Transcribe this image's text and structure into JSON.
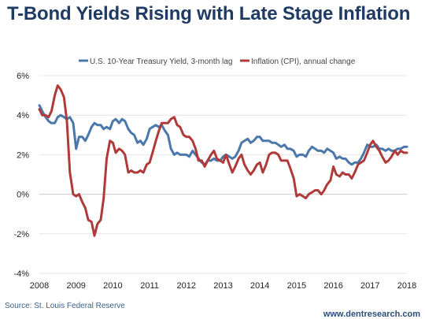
{
  "chart_data": {
    "type": "line",
    "title": "T-Bond Yields Rising with Late Stage Inflation",
    "source": "Source: St. Louis Federal Reserve",
    "website": "www.dentresearch.com",
    "xlim": [
      2008,
      2018
    ],
    "ylim": [
      -4,
      6
    ],
    "x_ticks": [
      "2008",
      "2009",
      "2010",
      "2011",
      "2012",
      "2013",
      "2014",
      "2015",
      "2016",
      "2017",
      "2018"
    ],
    "y_ticks": [
      "6%",
      "4%",
      "2%",
      "0%",
      "-2%",
      "-4%"
    ],
    "legend_position": "top",
    "grid": "horizontal",
    "series": [
      {
        "name": "U.S. 10-Year Treasury Yield, 3-month lag",
        "color": "#4a78ab",
        "points": [
          [
            2008.0,
            4.5
          ],
          [
            2008.08,
            4.2
          ],
          [
            2008.17,
            3.9
          ],
          [
            2008.25,
            3.7
          ],
          [
            2008.33,
            3.6
          ],
          [
            2008.42,
            3.6
          ],
          [
            2008.5,
            3.9
          ],
          [
            2008.58,
            4.0
          ],
          [
            2008.67,
            3.9
          ],
          [
            2008.75,
            3.8
          ],
          [
            2008.83,
            3.9
          ],
          [
            2008.92,
            3.6
          ],
          [
            2009.0,
            2.3
          ],
          [
            2009.08,
            2.9
          ],
          [
            2009.17,
            2.9
          ],
          [
            2009.25,
            2.7
          ],
          [
            2009.33,
            3.0
          ],
          [
            2009.42,
            3.4
          ],
          [
            2009.5,
            3.6
          ],
          [
            2009.58,
            3.5
          ],
          [
            2009.67,
            3.5
          ],
          [
            2009.75,
            3.3
          ],
          [
            2009.83,
            3.4
          ],
          [
            2009.92,
            3.3
          ],
          [
            2010.0,
            3.7
          ],
          [
            2010.08,
            3.8
          ],
          [
            2010.17,
            3.6
          ],
          [
            2010.25,
            3.8
          ],
          [
            2010.33,
            3.7
          ],
          [
            2010.42,
            3.3
          ],
          [
            2010.5,
            3.1
          ],
          [
            2010.58,
            3.0
          ],
          [
            2010.67,
            2.6
          ],
          [
            2010.75,
            2.7
          ],
          [
            2010.83,
            2.5
          ],
          [
            2010.92,
            2.8
          ],
          [
            2011.0,
            3.3
          ],
          [
            2011.08,
            3.4
          ],
          [
            2011.17,
            3.5
          ],
          [
            2011.25,
            3.4
          ],
          [
            2011.33,
            3.5
          ],
          [
            2011.42,
            3.2
          ],
          [
            2011.5,
            3.0
          ],
          [
            2011.58,
            2.3
          ],
          [
            2011.67,
            2.0
          ],
          [
            2011.75,
            2.1
          ],
          [
            2011.83,
            2.0
          ],
          [
            2011.92,
            2.0
          ],
          [
            2012.0,
            2.0
          ],
          [
            2012.08,
            1.9
          ],
          [
            2012.17,
            2.2
          ],
          [
            2012.25,
            2.0
          ],
          [
            2012.33,
            1.8
          ],
          [
            2012.42,
            1.6
          ],
          [
            2012.5,
            1.5
          ],
          [
            2012.58,
            1.7
          ],
          [
            2012.67,
            1.7
          ],
          [
            2012.75,
            1.8
          ],
          [
            2012.83,
            1.7
          ],
          [
            2012.92,
            1.7
          ],
          [
            2013.0,
            1.9
          ],
          [
            2013.08,
            2.0
          ],
          [
            2013.17,
            1.9
          ],
          [
            2013.25,
            1.8
          ],
          [
            2013.33,
            1.9
          ],
          [
            2013.42,
            2.2
          ],
          [
            2013.5,
            2.6
          ],
          [
            2013.58,
            2.7
          ],
          [
            2013.67,
            2.8
          ],
          [
            2013.75,
            2.6
          ],
          [
            2013.83,
            2.7
          ],
          [
            2013.92,
            2.9
          ],
          [
            2014.0,
            2.9
          ],
          [
            2014.08,
            2.7
          ],
          [
            2014.17,
            2.7
          ],
          [
            2014.25,
            2.7
          ],
          [
            2014.33,
            2.6
          ],
          [
            2014.42,
            2.6
          ],
          [
            2014.5,
            2.5
          ],
          [
            2014.58,
            2.4
          ],
          [
            2014.67,
            2.5
          ],
          [
            2014.75,
            2.3
          ],
          [
            2014.83,
            2.3
          ],
          [
            2014.92,
            2.2
          ],
          [
            2015.0,
            1.9
          ],
          [
            2015.08,
            2.0
          ],
          [
            2015.17,
            2.0
          ],
          [
            2015.25,
            1.9
          ],
          [
            2015.33,
            2.2
          ],
          [
            2015.42,
            2.4
          ],
          [
            2015.5,
            2.3
          ],
          [
            2015.58,
            2.2
          ],
          [
            2015.67,
            2.2
          ],
          [
            2015.75,
            2.1
          ],
          [
            2015.83,
            2.3
          ],
          [
            2015.92,
            2.2
          ],
          [
            2016.0,
            2.1
          ],
          [
            2016.08,
            1.8
          ],
          [
            2016.17,
            1.9
          ],
          [
            2016.25,
            1.8
          ],
          [
            2016.33,
            1.8
          ],
          [
            2016.42,
            1.6
          ],
          [
            2016.5,
            1.5
          ],
          [
            2016.58,
            1.6
          ],
          [
            2016.67,
            1.6
          ],
          [
            2016.75,
            1.8
          ],
          [
            2016.83,
            2.1
          ],
          [
            2016.92,
            2.5
          ],
          [
            2017.0,
            2.4
          ],
          [
            2017.08,
            2.4
          ],
          [
            2017.17,
            2.5
          ],
          [
            2017.25,
            2.3
          ],
          [
            2017.33,
            2.3
          ],
          [
            2017.42,
            2.2
          ],
          [
            2017.5,
            2.3
          ],
          [
            2017.58,
            2.2
          ],
          [
            2017.67,
            2.2
          ],
          [
            2017.75,
            2.3
          ],
          [
            2017.83,
            2.3
          ],
          [
            2017.92,
            2.4
          ],
          [
            2018.0,
            2.4
          ]
        ]
      },
      {
        "name": "Inflation (CPI), annual change",
        "color": "#b03a3a",
        "points": [
          [
            2008.0,
            4.3
          ],
          [
            2008.08,
            4.0
          ],
          [
            2008.17,
            4.0
          ],
          [
            2008.25,
            3.9
          ],
          [
            2008.33,
            4.2
          ],
          [
            2008.42,
            5.0
          ],
          [
            2008.5,
            5.5
          ],
          [
            2008.58,
            5.3
          ],
          [
            2008.67,
            4.9
          ],
          [
            2008.75,
            3.7
          ],
          [
            2008.83,
            1.1
          ],
          [
            2008.92,
            0.0
          ],
          [
            2009.0,
            -0.1
          ],
          [
            2009.08,
            0.0
          ],
          [
            2009.17,
            -0.4
          ],
          [
            2009.25,
            -0.7
          ],
          [
            2009.33,
            -1.3
          ],
          [
            2009.42,
            -1.4
          ],
          [
            2009.5,
            -2.1
          ],
          [
            2009.58,
            -1.5
          ],
          [
            2009.67,
            -1.3
          ],
          [
            2009.75,
            -0.2
          ],
          [
            2009.83,
            1.8
          ],
          [
            2009.92,
            2.7
          ],
          [
            2010.0,
            2.6
          ],
          [
            2010.08,
            2.1
          ],
          [
            2010.17,
            2.3
          ],
          [
            2010.25,
            2.2
          ],
          [
            2010.33,
            2.0
          ],
          [
            2010.42,
            1.1
          ],
          [
            2010.5,
            1.2
          ],
          [
            2010.58,
            1.1
          ],
          [
            2010.67,
            1.1
          ],
          [
            2010.75,
            1.2
          ],
          [
            2010.83,
            1.1
          ],
          [
            2010.92,
            1.5
          ],
          [
            2011.0,
            1.6
          ],
          [
            2011.08,
            2.1
          ],
          [
            2011.17,
            2.7
          ],
          [
            2011.25,
            3.2
          ],
          [
            2011.33,
            3.6
          ],
          [
            2011.42,
            3.6
          ],
          [
            2011.5,
            3.6
          ],
          [
            2011.58,
            3.8
          ],
          [
            2011.67,
            3.9
          ],
          [
            2011.75,
            3.5
          ],
          [
            2011.83,
            3.4
          ],
          [
            2011.92,
            3.0
          ],
          [
            2012.0,
            2.9
          ],
          [
            2012.08,
            2.9
          ],
          [
            2012.17,
            2.7
          ],
          [
            2012.25,
            2.3
          ],
          [
            2012.33,
            1.7
          ],
          [
            2012.42,
            1.7
          ],
          [
            2012.5,
            1.4
          ],
          [
            2012.58,
            1.7
          ],
          [
            2012.67,
            2.0
          ],
          [
            2012.75,
            2.2
          ],
          [
            2012.83,
            1.8
          ],
          [
            2012.92,
            1.7
          ],
          [
            2013.0,
            1.6
          ],
          [
            2013.08,
            2.0
          ],
          [
            2013.17,
            1.5
          ],
          [
            2013.25,
            1.1
          ],
          [
            2013.33,
            1.4
          ],
          [
            2013.42,
            1.8
          ],
          [
            2013.5,
            2.0
          ],
          [
            2013.58,
            1.5
          ],
          [
            2013.67,
            1.2
          ],
          [
            2013.75,
            1.0
          ],
          [
            2013.83,
            1.2
          ],
          [
            2013.92,
            1.5
          ],
          [
            2014.0,
            1.6
          ],
          [
            2014.08,
            1.1
          ],
          [
            2014.17,
            1.5
          ],
          [
            2014.25,
            2.0
          ],
          [
            2014.33,
            2.1
          ],
          [
            2014.42,
            2.1
          ],
          [
            2014.5,
            2.0
          ],
          [
            2014.58,
            1.7
          ],
          [
            2014.67,
            1.7
          ],
          [
            2014.75,
            1.7
          ],
          [
            2014.83,
            1.3
          ],
          [
            2014.92,
            0.8
          ],
          [
            2015.0,
            -0.1
          ],
          [
            2015.08,
            0.0
          ],
          [
            2015.17,
            -0.1
          ],
          [
            2015.25,
            -0.2
          ],
          [
            2015.33,
            0.0
          ],
          [
            2015.42,
            0.1
          ],
          [
            2015.5,
            0.2
          ],
          [
            2015.58,
            0.2
          ],
          [
            2015.67,
            0.0
          ],
          [
            2015.75,
            0.2
          ],
          [
            2015.83,
            0.5
          ],
          [
            2015.92,
            0.7
          ],
          [
            2016.0,
            1.4
          ],
          [
            2016.08,
            1.0
          ],
          [
            2016.17,
            0.9
          ],
          [
            2016.25,
            1.1
          ],
          [
            2016.33,
            1.0
          ],
          [
            2016.42,
            1.0
          ],
          [
            2016.5,
            0.8
          ],
          [
            2016.58,
            1.1
          ],
          [
            2016.67,
            1.5
          ],
          [
            2016.75,
            1.6
          ],
          [
            2016.83,
            1.7
          ],
          [
            2016.92,
            2.1
          ],
          [
            2017.0,
            2.5
          ],
          [
            2017.08,
            2.7
          ],
          [
            2017.17,
            2.4
          ],
          [
            2017.25,
            2.2
          ],
          [
            2017.33,
            1.9
          ],
          [
            2017.42,
            1.6
          ],
          [
            2017.5,
            1.7
          ],
          [
            2017.58,
            1.9
          ],
          [
            2017.67,
            2.2
          ],
          [
            2017.75,
            2.0
          ],
          [
            2017.83,
            2.2
          ],
          [
            2017.92,
            2.1
          ],
          [
            2018.0,
            2.1
          ]
        ]
      }
    ]
  }
}
